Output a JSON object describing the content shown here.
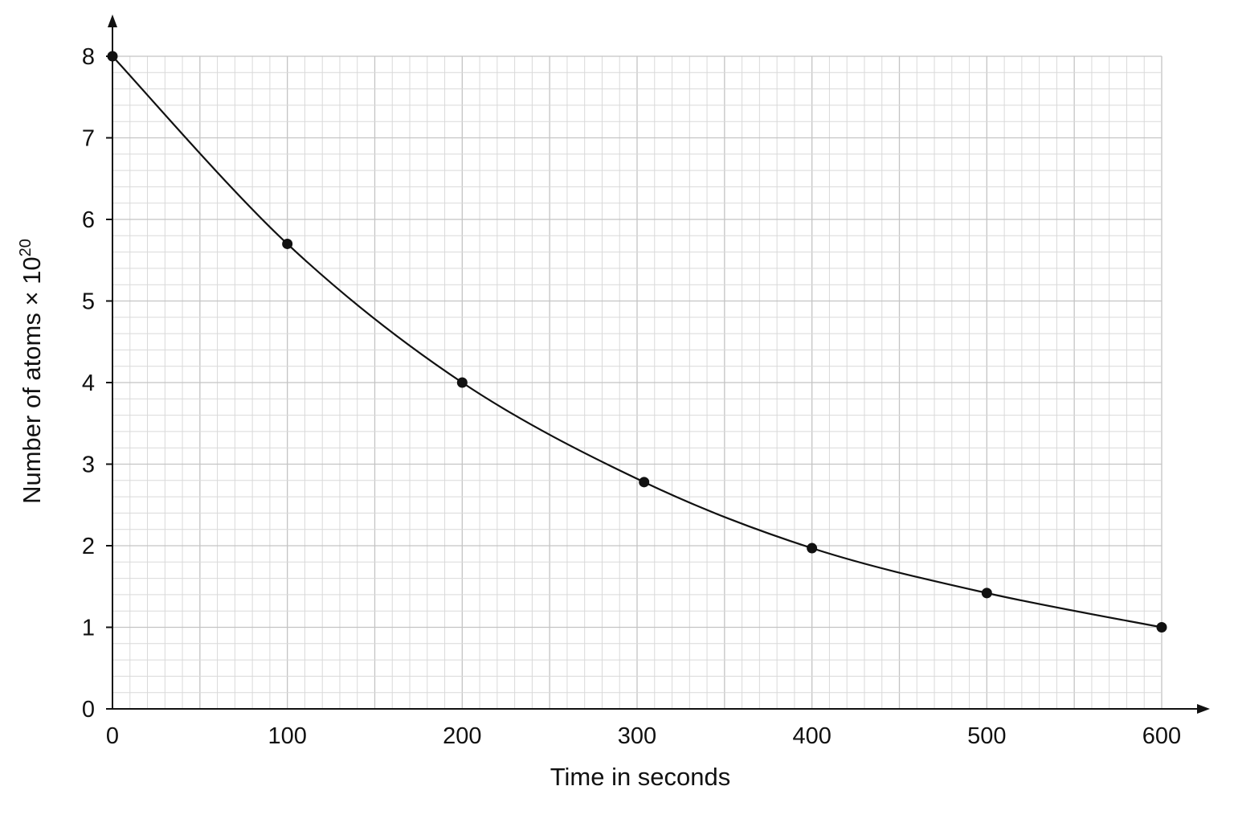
{
  "chart_data": {
    "type": "scatter",
    "xlabel": "Time in seconds",
    "ylabel_main": "Number of atoms × 10",
    "ylabel_exp": "20",
    "xlim": [
      0,
      600
    ],
    "ylim": [
      0,
      8
    ],
    "x_ticks": [
      "0",
      "100",
      "200",
      "300",
      "400",
      "500",
      "600"
    ],
    "y_ticks": [
      "0",
      "1",
      "2",
      "3",
      "4",
      "5",
      "6",
      "7",
      "8"
    ],
    "grid": true,
    "fitted_curve": "smooth decay curve through points",
    "series": [
      {
        "x": [
          0,
          100,
          200,
          304,
          400,
          500,
          600
        ],
        "y": [
          8,
          5.7,
          4.0,
          2.78,
          1.97,
          1.42,
          1.0
        ]
      }
    ]
  }
}
